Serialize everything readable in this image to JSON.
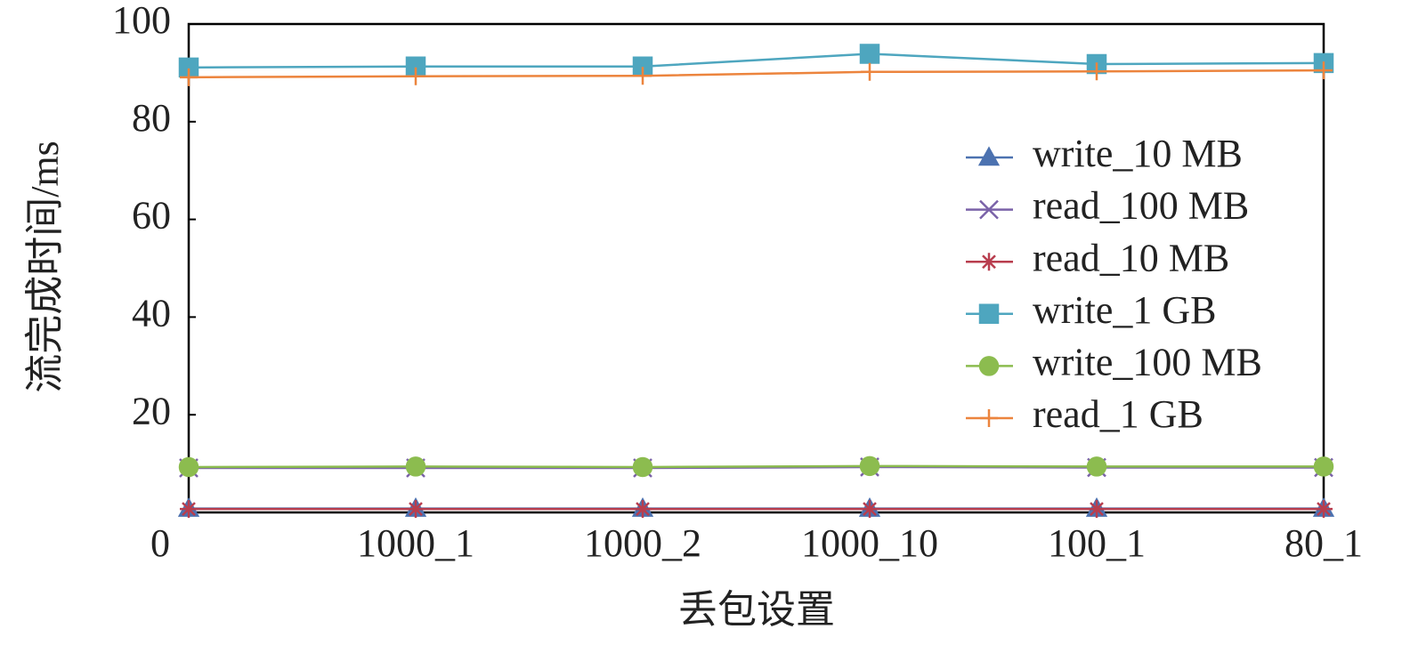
{
  "chart_data": {
    "type": "line",
    "x_label": "丢包设置",
    "y_label": "流完成时间/ms",
    "categories": [
      "0",
      "1000_1",
      "1000_2",
      "1000_10",
      "100_1",
      "80_1"
    ],
    "series": [
      {
        "name": "write_10 MB",
        "color": "#4c72b0",
        "marker": "triangle",
        "values": [
          0.8,
          0.8,
          0.8,
          0.8,
          0.8,
          0.8
        ]
      },
      {
        "name": "read_100 MB",
        "color": "#7a62a8",
        "marker": "x",
        "values": [
          9.1,
          9.1,
          9.1,
          9.3,
          9.2,
          9.2
        ]
      },
      {
        "name": "read_10 MB",
        "color": "#b83d4e",
        "marker": "star",
        "values": [
          0.7,
          0.7,
          0.7,
          0.7,
          0.7,
          0.7
        ]
      },
      {
        "name": "write_1 GB",
        "color": "#4ea6bf",
        "marker": "square",
        "values": [
          91.1,
          91.3,
          91.3,
          93.9,
          91.8,
          92.0
        ]
      },
      {
        "name": "write_100 MB",
        "color": "#8cbc4f",
        "marker": "circle",
        "values": [
          9.3,
          9.4,
          9.3,
          9.5,
          9.4,
          9.4
        ]
      },
      {
        "name": "read_1 GB",
        "color": "#ec843d",
        "marker": "plus",
        "values": [
          89.1,
          89.3,
          89.4,
          90.2,
          90.3,
          90.5
        ]
      }
    ],
    "ylim": [
      0,
      100
    ],
    "yticks": [
      20,
      40,
      60,
      80,
      100
    ],
    "grid": false,
    "legend": "right"
  }
}
